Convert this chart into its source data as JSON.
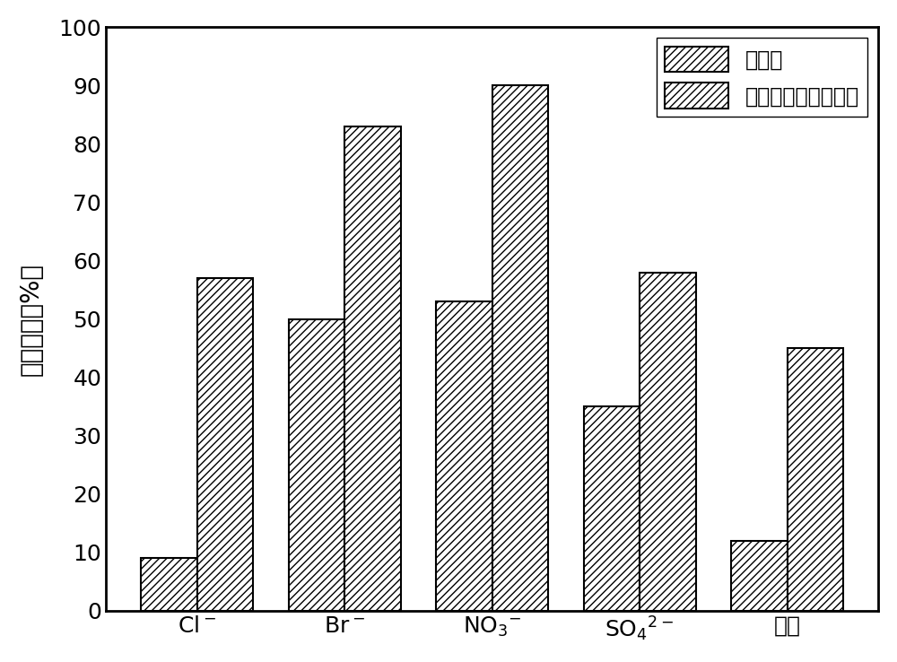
{
  "series_names": [
    "对照组",
    "含氧化还原活性物质"
  ],
  "values_control": [
    9,
    50,
    53,
    35,
    12
  ],
  "values_treatment": [
    57,
    83,
    90,
    58,
    45
  ],
  "bar_width": 0.38,
  "ylim": [
    0,
    100
  ],
  "yticks": [
    0,
    10,
    20,
    30,
    40,
    50,
    60,
    70,
    80,
    90,
    100
  ],
  "ylabel": "去除效率（%）",
  "hatch_control": "////",
  "hatch_treatment": "////",
  "bar_facecolor": "white",
  "edge_color": "black",
  "edge_linewidth": 1.5,
  "legend_loc": "upper right",
  "figsize": [
    10.0,
    7.38
  ],
  "dpi": 100,
  "font_size_ylabel": 20,
  "font_size_ticks": 18,
  "font_size_legend": 17,
  "spine_linewidth": 2.0
}
